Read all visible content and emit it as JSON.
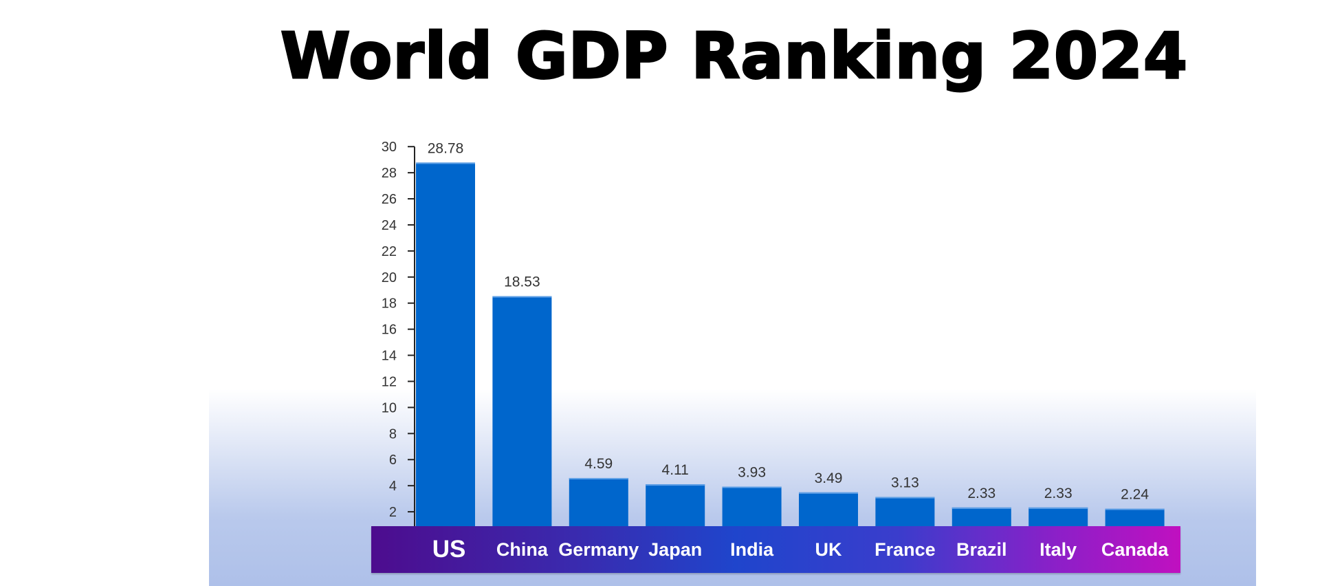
{
  "chart_data": {
    "type": "bar",
    "title": "World GDP Ranking 2024",
    "xlabel": "",
    "ylabel": "",
    "categories": [
      "US",
      "China",
      "Germany",
      "Japan",
      "India",
      "UK",
      "France",
      "Brazil",
      "Italy",
      "Canada"
    ],
    "values": [
      28.78,
      18.53,
      4.59,
      4.11,
      3.93,
      3.49,
      3.13,
      2.33,
      2.33,
      2.24
    ],
    "value_labels": [
      "28.78",
      "18.53",
      "4.59",
      "4.11",
      "3.93",
      "3.49",
      "3.13",
      "2.33",
      "2.33",
      "2.24"
    ],
    "yticks": [
      2,
      4,
      6,
      8,
      10,
      12,
      14,
      16,
      18,
      20,
      22,
      24,
      26,
      28,
      30
    ],
    "ylim": [
      0,
      30
    ],
    "grid": false,
    "bar_color": "#0066cc"
  }
}
